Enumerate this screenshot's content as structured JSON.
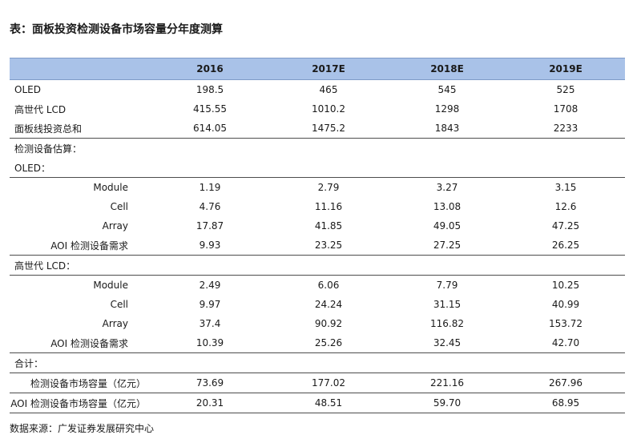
{
  "title": "表：面板投资检测设备市场容量分年度测算",
  "header": {
    "label": "",
    "years": [
      "2016",
      "2017E",
      "2018E",
      "2019E"
    ]
  },
  "panel_rows": [
    {
      "label": "OLED",
      "values": [
        "198.5",
        "465",
        "545",
        "525"
      ]
    },
    {
      "label": "高世代 LCD",
      "values": [
        "415.55",
        "1010.2",
        "1298",
        "1708"
      ]
    },
    {
      "label": "面板线投资总和",
      "values": [
        "614.05",
        "1475.2",
        "1843",
        "2233"
      ]
    }
  ],
  "estimate_heading": "检测设备估算：",
  "oled_section": {
    "heading": "OLED：",
    "rows": [
      {
        "label": "Module",
        "values": [
          "1.19",
          "2.79",
          "3.27",
          "3.15"
        ]
      },
      {
        "label": "Cell",
        "values": [
          "4.76",
          "11.16",
          "13.08",
          "12.6"
        ]
      },
      {
        "label": "Array",
        "values": [
          "17.87",
          "41.85",
          "49.05",
          "47.25"
        ]
      },
      {
        "label": "AOI 检测设备需求",
        "values": [
          "9.93",
          "23.25",
          "27.25",
          "26.25"
        ]
      }
    ]
  },
  "lcd_section": {
    "heading": "高世代 LCD：",
    "rows": [
      {
        "label": "Module",
        "values": [
          "2.49",
          "6.06",
          "7.79",
          "10.25"
        ]
      },
      {
        "label": "Cell",
        "values": [
          "9.97",
          "24.24",
          "31.15",
          "40.99"
        ]
      },
      {
        "label": "Array",
        "values": [
          "37.4",
          "90.92",
          "116.82",
          "153.72"
        ]
      },
      {
        "label": "AOI 检测设备需求",
        "values": [
          "10.39",
          "25.26",
          "32.45",
          "42.70"
        ]
      }
    ]
  },
  "total_section": {
    "heading": "合计：",
    "rows": [
      {
        "label": "检测设备市场容量（亿元）",
        "values": [
          "73.69",
          "177.02",
          "221.16",
          "267.96"
        ]
      },
      {
        "label": "AOI 检测设备市场容量（亿元）",
        "values": [
          "20.31",
          "48.51",
          "59.70",
          "68.95"
        ]
      }
    ]
  },
  "source": "数据来源：广发证券发展研究中心"
}
